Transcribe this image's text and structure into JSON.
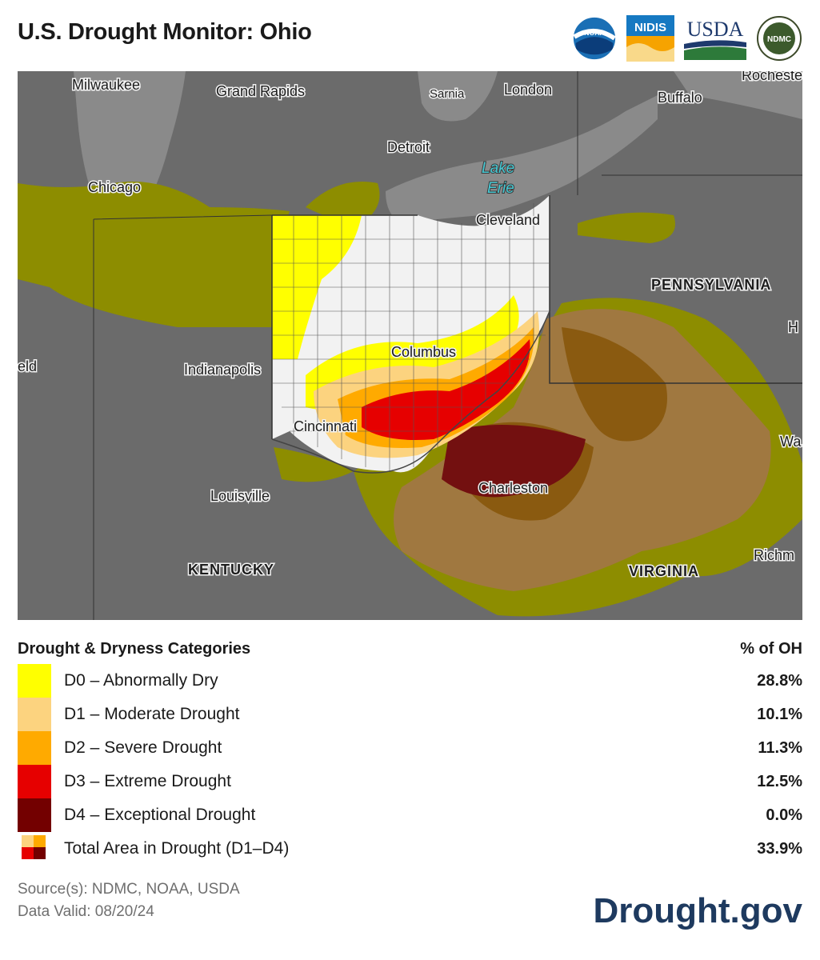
{
  "header": {
    "title": "U.S. Drought Monitor: Ohio",
    "logos": [
      "NOAA",
      "NIDIS",
      "USDA",
      "NDMC"
    ]
  },
  "map": {
    "labels": {
      "milwaukee": "Milwaukee",
      "grand_rapids": "Grand Rapids",
      "sarnia": "Sarnia",
      "london": "London",
      "buffalo": "Buffalo",
      "rochester": "Rocheste",
      "detroit": "Detroit",
      "lake_erie_1": "Lake",
      "lake_erie_2": "Erie",
      "chicago": "Chicago",
      "cleveland": "Cleveland",
      "pennsylvania": "PENNSYLVANIA",
      "h": "H",
      "columbus": "Columbus",
      "eld": "eld",
      "indianapolis": "Indianapolis",
      "cincinnati": "Cincinnati",
      "wa": "Wa",
      "charleston": "Charleston",
      "louisville": "Louisville",
      "richmond": "Richm",
      "kentucky": "KENTUCKY",
      "virginia": "VIRGINIA"
    }
  },
  "legend": {
    "heading": "Drought & Dryness Categories",
    "value_heading": "% of OH",
    "rows": [
      {
        "label": "D0 – Abnormally Dry",
        "value": "28.8%",
        "color": "#ffff00"
      },
      {
        "label": "D1 – Moderate Drought",
        "value": "10.1%",
        "color": "#fcd37f"
      },
      {
        "label": "D2 – Severe Drought",
        "value": "11.3%",
        "color": "#ffaa00"
      },
      {
        "label": "D3 – Extreme Drought",
        "value": "12.5%",
        "color": "#e60000"
      },
      {
        "label": "D4 – Exceptional Drought",
        "value": "0.0%",
        "color": "#730000"
      }
    ],
    "total": {
      "label": "Total Area in Drought (D1–D4)",
      "value": "33.9%"
    }
  },
  "footer": {
    "source": "Source(s): NDMC, NOAA, USDA",
    "valid": "Data Valid: 08/20/24",
    "brand": "Drought.gov"
  }
}
